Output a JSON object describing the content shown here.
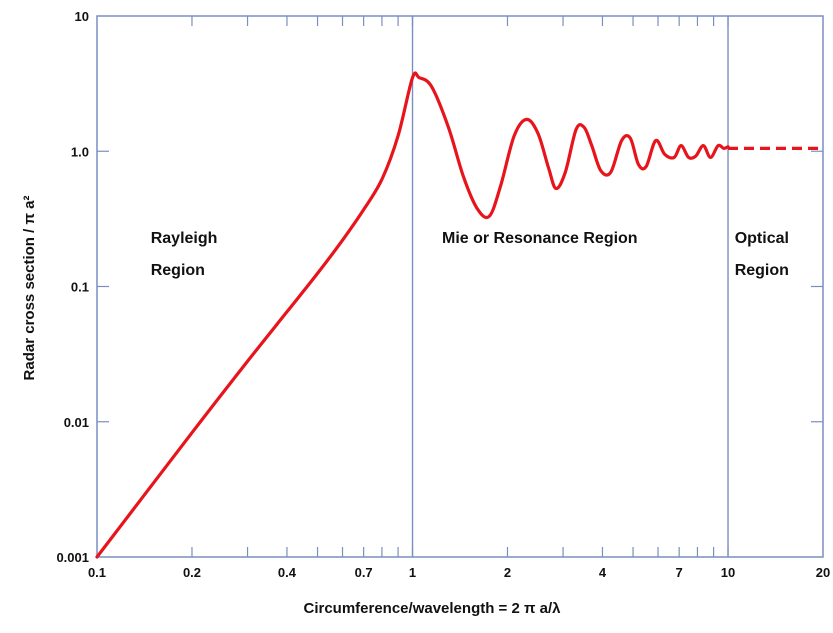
{
  "chart_data": {
    "type": "line",
    "x_scale": "log",
    "y_scale": "log",
    "xlim": [
      0.1,
      20
    ],
    "ylim": [
      0.001,
      10
    ],
    "xlabel": "Circumference/wavelength = 2 π a/λ",
    "ylabel": "Radar cross section / π a²",
    "x_tick_labels": [
      {
        "value": 0.1,
        "label": "0.1"
      },
      {
        "value": 0.2,
        "label": "0.2"
      },
      {
        "value": 0.4,
        "label": "0.4"
      },
      {
        "value": 0.7,
        "label": "0.7"
      },
      {
        "value": 1,
        "label": "1"
      },
      {
        "value": 2,
        "label": "2"
      },
      {
        "value": 4,
        "label": "4"
      },
      {
        "value": 7,
        "label": "7"
      },
      {
        "value": 10,
        "label": "10"
      },
      {
        "value": 20,
        "label": "20"
      }
    ],
    "y_tick_labels": [
      {
        "value": 0.001,
        "label": "0.001"
      },
      {
        "value": 0.01,
        "label": "0.01"
      },
      {
        "value": 0.1,
        "label": "0.1"
      },
      {
        "value": 1,
        "label": "1.0"
      },
      {
        "value": 10,
        "label": "10"
      }
    ],
    "region_boundaries": [
      1,
      10
    ],
    "regions": [
      {
        "lines": [
          "Rayleigh",
          "Region"
        ],
        "anchor_x": 0.148,
        "anchor_y": 0.21
      },
      {
        "lines": [
          "Mie or Resonance Region"
        ],
        "anchor_x": 1.24,
        "anchor_y": 0.21
      },
      {
        "lines": [
          "Optical",
          "Region"
        ],
        "anchor_x": 10.5,
        "anchor_y": 0.21
      }
    ],
    "series": [
      {
        "style": "solid",
        "color": "#e8141b",
        "x": [
          0.1,
          0.2,
          0.3,
          0.4,
          0.5,
          0.6,
          0.7,
          0.8,
          0.9,
          1.0,
          1.05,
          1.15,
          1.3,
          1.45,
          1.6,
          1.75,
          1.9,
          2.1,
          2.3,
          2.5,
          2.7,
          2.85,
          3.05,
          3.3,
          3.5,
          3.7,
          3.95,
          4.25,
          4.6,
          4.9,
          5.2,
          5.5,
          5.9,
          6.3,
          6.75,
          7.1,
          7.5,
          7.9,
          8.35,
          8.8,
          9.3,
          9.7,
          10.0
        ],
        "y": [
          0.001,
          0.0083,
          0.028,
          0.065,
          0.125,
          0.22,
          0.37,
          0.62,
          1.3,
          3.5,
          3.5,
          3.0,
          1.5,
          0.65,
          0.38,
          0.33,
          0.55,
          1.3,
          1.72,
          1.35,
          0.75,
          0.53,
          0.7,
          1.45,
          1.5,
          1.1,
          0.72,
          0.7,
          1.2,
          1.25,
          0.8,
          0.77,
          1.2,
          0.95,
          0.9,
          1.1,
          0.9,
          0.92,
          1.1,
          0.9,
          1.1,
          1.05,
          1.08
        ]
      },
      {
        "style": "dashed",
        "color": "#e8141b",
        "x": [
          10,
          20
        ],
        "y": [
          1.05,
          1.05
        ]
      }
    ],
    "grid": false,
    "legend": "none"
  }
}
